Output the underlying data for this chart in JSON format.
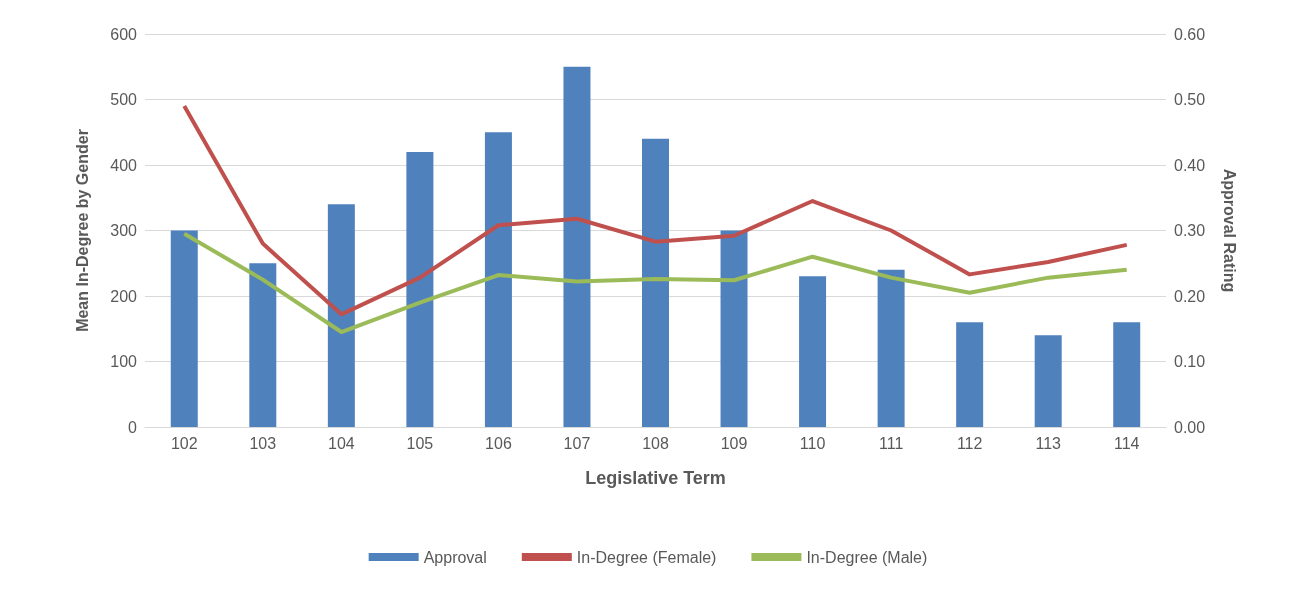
{
  "chart_data": {
    "type": "bar",
    "xlabel": "Legislative Term",
    "ylabel": "Mean In-Degree by Gender",
    "y2label": "Approval Rating",
    "categories": [
      "102",
      "103",
      "104",
      "105",
      "106",
      "107",
      "108",
      "109",
      "110",
      "111",
      "112",
      "113",
      "114"
    ],
    "series": [
      {
        "name": "Approval",
        "axis": "y2",
        "color": "#4f81bd",
        "values": [
          0.3,
          0.25,
          0.34,
          0.42,
          0.45,
          0.55,
          0.44,
          0.3,
          0.23,
          0.24,
          0.16,
          0.14,
          0.16
        ]
      },
      {
        "name": "In-Degree (Female)",
        "type": "line",
        "color": "#c0504d",
        "values": [
          490,
          280,
          172,
          228,
          308,
          318,
          283,
          292,
          345,
          300,
          233,
          252,
          278
        ]
      },
      {
        "name": "In-Degree (Male)",
        "type": "line",
        "color": "#9bbb59",
        "values": [
          295,
          225,
          145,
          190,
          232,
          222,
          226,
          224,
          260,
          228,
          205,
          228,
          240
        ]
      }
    ],
    "ylim": [
      0,
      600
    ],
    "yticks": [
      0,
      100,
      200,
      300,
      400,
      500,
      600
    ],
    "y2lim": [
      0,
      0.6
    ],
    "y2ticks": [
      {
        "value": 0,
        "label": "0.00"
      },
      {
        "value": 0.1,
        "label": "0.10"
      },
      {
        "value": 0.2,
        "label": "0.20"
      },
      {
        "value": 0.3,
        "label": "0.30"
      },
      {
        "value": 0.4,
        "label": "0.40"
      },
      {
        "value": 0.5,
        "label": "0.50"
      },
      {
        "value": 0.6,
        "label": "0.60"
      }
    ],
    "grid": "y",
    "legend": "bottom",
    "marker": "none",
    "line_style": "solid"
  }
}
